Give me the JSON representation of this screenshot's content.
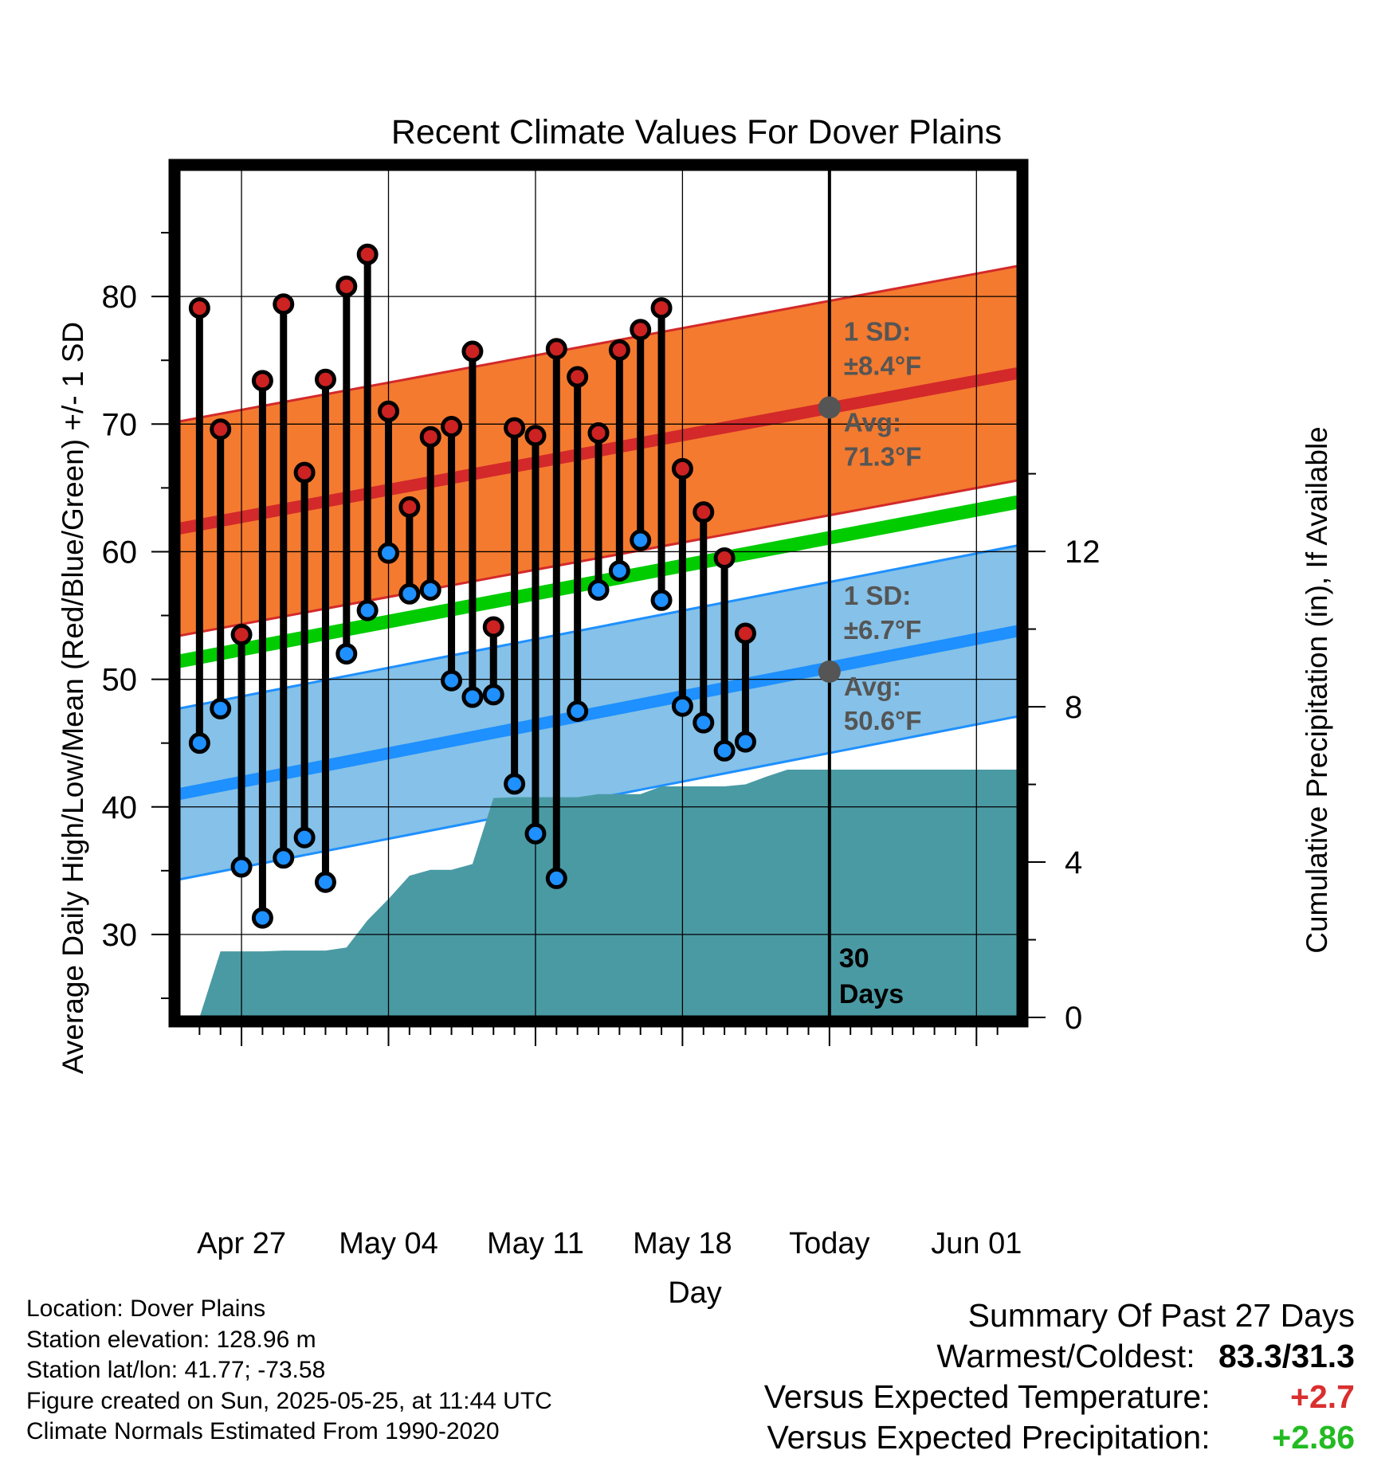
{
  "chart_data": {
    "type": "line",
    "title": "Recent Climate Values For Dover Plains",
    "xlabel": "Day",
    "ylabel": "Average Daily High/Low/Mean (Red/Blue/Green) +/- 1 SD",
    "ylabel_right": "Cumulative Precipitation (in), If Available",
    "x_tick_labels": [
      "Apr 27",
      "May 04",
      "May 11",
      "May 18",
      "Today",
      "Jun 01"
    ],
    "x_range": [
      "2025-04-24",
      "2025-06-03"
    ],
    "ylim": [
      23.5,
      90
    ],
    "y_ticks": [
      30,
      40,
      50,
      60,
      70,
      80
    ],
    "ylim_right": [
      0,
      21.85
    ],
    "y_ticks_right": [
      0,
      4,
      8,
      12
    ],
    "grid": true,
    "today_marker": {
      "date": "2025-05-25",
      "label": "30 Days"
    },
    "normal_high": {
      "mean_start": 61.8,
      "mean_end": 74.0,
      "sd": 8.4,
      "annotation_sd": "1 SD:",
      "annotation_sd_value": "±8.4°F",
      "annotation_avg": "Avg:",
      "annotation_avg_value": "71.3°F",
      "today_avg": 71.3
    },
    "normal_low": {
      "mean_start": 41.0,
      "mean_end": 53.8,
      "sd": 6.7,
      "annotation_sd": "1 SD:",
      "annotation_sd_value": "±6.7°F",
      "annotation_avg": "Avg:",
      "annotation_avg_value": "50.6°F",
      "today_avg": 50.6
    },
    "normal_mean": {
      "start": 51.4,
      "end": 63.9
    },
    "series": [
      {
        "name": "High",
        "dates": [
          "2025-04-25",
          "2025-04-26",
          "2025-04-27",
          "2025-04-28",
          "2025-04-29",
          "2025-04-30",
          "2025-05-01",
          "2025-05-02",
          "2025-05-03",
          "2025-05-04",
          "2025-05-05",
          "2025-05-06",
          "2025-05-07",
          "2025-05-08",
          "2025-05-09",
          "2025-05-10",
          "2025-05-11",
          "2025-05-12",
          "2025-05-13",
          "2025-05-14",
          "2025-05-15",
          "2025-05-16",
          "2025-05-17",
          "2025-05-18",
          "2025-05-19",
          "2025-05-20",
          "2025-05-21"
        ],
        "values": [
          79.1,
          69.6,
          53.5,
          73.4,
          79.4,
          66.2,
          73.5,
          80.8,
          83.3,
          71.0,
          63.5,
          69.0,
          69.8,
          75.7,
          54.1,
          69.7,
          69.1,
          75.9,
          73.7,
          69.3,
          75.8,
          77.4,
          79.1,
          66.5,
          63.1,
          59.5,
          53.6
        ]
      },
      {
        "name": "Low",
        "dates": [
          "2025-04-25",
          "2025-04-26",
          "2025-04-27",
          "2025-04-28",
          "2025-04-29",
          "2025-04-30",
          "2025-05-01",
          "2025-05-02",
          "2025-05-03",
          "2025-05-04",
          "2025-05-05",
          "2025-05-06",
          "2025-05-07",
          "2025-05-08",
          "2025-05-09",
          "2025-05-10",
          "2025-05-11",
          "2025-05-12",
          "2025-05-13",
          "2025-05-14",
          "2025-05-15",
          "2025-05-16",
          "2025-05-17",
          "2025-05-18",
          "2025-05-19",
          "2025-05-20",
          "2025-05-21"
        ],
        "values": [
          45.0,
          47.7,
          35.3,
          31.3,
          36.0,
          37.6,
          34.1,
          52.0,
          55.4,
          59.9,
          56.7,
          57.0,
          49.9,
          48.6,
          48.8,
          41.8,
          37.9,
          34.4,
          47.5,
          57.0,
          58.5,
          60.9,
          56.2,
          47.9,
          46.6,
          44.4,
          45.1
        ]
      },
      {
        "name": "Cumulative Precipitation",
        "dates": [
          "2025-04-25",
          "2025-04-26",
          "2025-04-27",
          "2025-04-28",
          "2025-04-29",
          "2025-04-30",
          "2025-05-01",
          "2025-05-02",
          "2025-05-03",
          "2025-05-04",
          "2025-05-05",
          "2025-05-06",
          "2025-05-07",
          "2025-05-08",
          "2025-05-09",
          "2025-05-10",
          "2025-05-11",
          "2025-05-12",
          "2025-05-13",
          "2025-05-14",
          "2025-05-15",
          "2025-05-16",
          "2025-05-17",
          "2025-05-18",
          "2025-05-19",
          "2025-05-20",
          "2025-05-21",
          "2025-05-22",
          "2025-05-23",
          "2025-06-03"
        ],
        "values": [
          0.0,
          1.7,
          1.7,
          1.7,
          1.72,
          1.72,
          1.72,
          1.8,
          2.5,
          3.05,
          3.65,
          3.8,
          3.8,
          3.95,
          5.65,
          5.67,
          5.67,
          5.67,
          5.67,
          5.75,
          5.75,
          5.75,
          5.95,
          5.95,
          5.95,
          5.95,
          6.0,
          6.2,
          6.38,
          6.38
        ]
      }
    ]
  },
  "footer": {
    "location": "Location: Dover Plains",
    "elevation": "Station elevation: 128.96 m",
    "latlon": "Station lat/lon: 41.77; -73.58",
    "created": "Figure created on Sun, 2025-05-25, at 11:44 UTC",
    "normals": "Climate Normals Estimated From 1990-2020"
  },
  "summary": {
    "title": "Summary Of Past 27 Days",
    "warmest_coldest_label": "Warmest/Coldest:",
    "warmest_coldest_value": "83.3/31.3",
    "temp_label": "Versus Expected Temperature:",
    "temp_value": "+2.7",
    "precip_label": "Versus Expected Precipitation:",
    "precip_value": "+2.86"
  },
  "colors": {
    "high_band": "#f47a2f",
    "high_line": "#d3292a",
    "low_band": "#85c1e8",
    "low_line": "#1e90ff",
    "mean_line": "#00cc00",
    "precip_fill": "#4a9aa4",
    "high_marker": "#cc2222",
    "low_marker": "#1e90ff",
    "annotation_text": "#555555",
    "warm_text": "#d92f2f",
    "wet_text": "#22bb22"
  }
}
